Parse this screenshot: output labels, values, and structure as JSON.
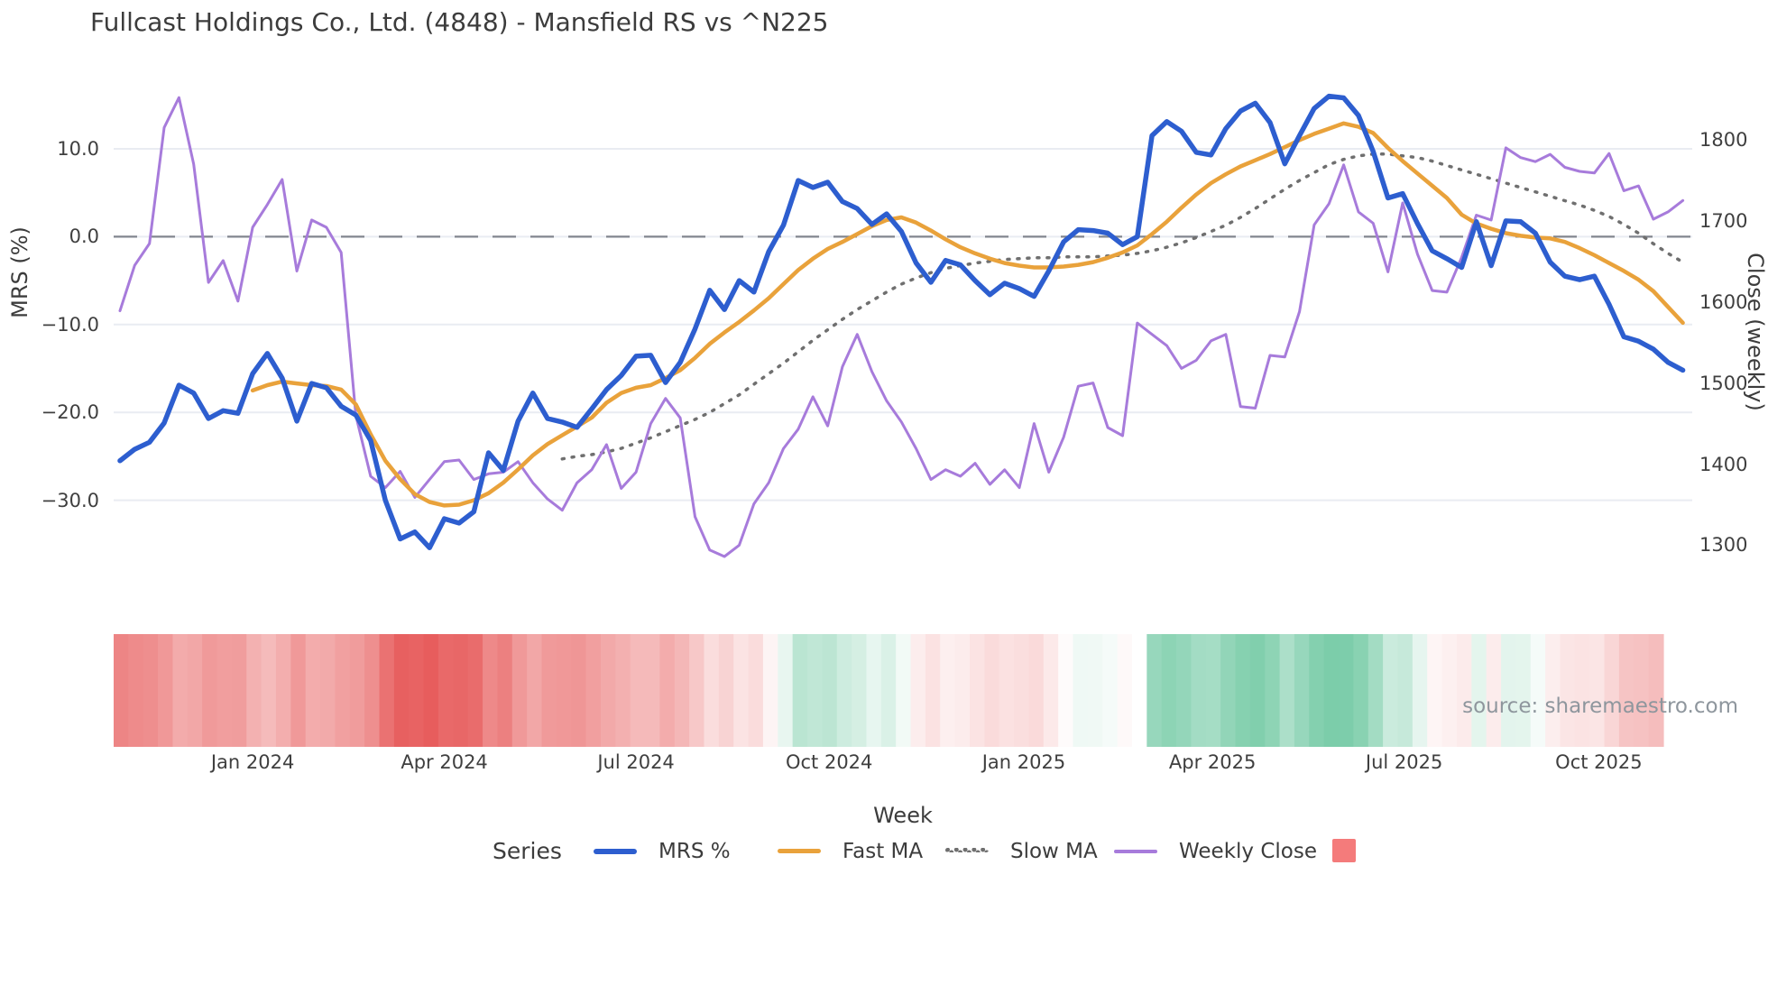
{
  "title": "Fullcast Holdings Co., Ltd. (4848) - Mansfield RS vs ^N225",
  "source_note": "source: sharemaestro.com",
  "legend": {
    "title": "Series",
    "swatch_color": "#f47b7b"
  },
  "chart_data": {
    "type": "line",
    "x_axis": {
      "label": "Week",
      "start_date": "2023-10-30",
      "interval_days": 7,
      "ticks": [
        {
          "pos": 9.0,
          "label": "Jan 2024"
        },
        {
          "pos": 22.0,
          "label": "Apr 2024"
        },
        {
          "pos": 35.0,
          "label": "Jul 2024"
        },
        {
          "pos": 48.1,
          "label": "Oct 2024"
        },
        {
          "pos": 61.3,
          "label": "Jan 2025"
        },
        {
          "pos": 74.1,
          "label": "Apr 2025"
        },
        {
          "pos": 87.1,
          "label": "Jul 2025"
        },
        {
          "pos": 100.3,
          "label": "Oct 2025"
        }
      ]
    },
    "y_left": {
      "label": "MRS (%)",
      "ticks": [
        {
          "v": 10,
          "label": "10.0"
        },
        {
          "v": 0,
          "label": "0.0"
        },
        {
          "v": -10,
          "label": "−10.0"
        },
        {
          "v": -20,
          "label": "−20.0"
        },
        {
          "v": -30,
          "label": "−30.0"
        }
      ],
      "zero_dashed_line": true
    },
    "y_right": {
      "label": "Close (weekly)",
      "ticks": [
        {
          "v": 1800,
          "label": "1800"
        },
        {
          "v": 1700,
          "label": "1700"
        },
        {
          "v": 1600,
          "label": "1600"
        },
        {
          "v": 1500,
          "label": "1500"
        },
        {
          "v": 1400,
          "label": "1400"
        },
        {
          "v": 1300,
          "label": "1300"
        }
      ]
    },
    "series": [
      {
        "name": "MRS %",
        "axis": "left",
        "color": "#2d5ecf",
        "width": 5.5,
        "style": "solid",
        "values": [
          -25.5,
          -24.2,
          -23.4,
          -21.2,
          -16.9,
          -17.8,
          -20.7,
          -19.8,
          -20.1,
          -15.6,
          -13.3,
          -16.1,
          -21.0,
          -16.7,
          -17.2,
          -19.3,
          -20.3,
          -23.2,
          -30.0,
          -34.4,
          -33.6,
          -35.4,
          -32.1,
          -32.6,
          -31.3,
          -24.6,
          -26.6,
          -21.0,
          -17.8,
          -20.7,
          -21.1,
          -21.7,
          -19.6,
          -17.4,
          -15.8,
          -13.6,
          -13.5,
          -16.6,
          -14.3,
          -10.5,
          -6.1,
          -8.3,
          -5.0,
          -6.3,
          -1.7,
          1.3,
          6.4,
          5.6,
          6.2,
          4.0,
          3.2,
          1.4,
          2.6,
          0.6,
          -3.0,
          -5.2,
          -2.7,
          -3.2,
          -5.0,
          -6.6,
          -5.3,
          -5.9,
          -6.8,
          -3.9,
          -0.6,
          0.8,
          0.7,
          0.4,
          -0.9,
          0.0,
          11.5,
          13.1,
          12.0,
          9.6,
          9.3,
          12.3,
          14.3,
          15.2,
          13.0,
          8.3,
          11.5,
          14.6,
          16.0,
          15.8,
          13.8,
          9.7,
          4.4,
          4.9,
          1.5,
          -1.6,
          -2.5,
          -3.5,
          1.7,
          -3.3,
          1.8,
          1.7,
          0.4,
          -2.9,
          -4.5,
          -4.9,
          -4.5,
          -7.7,
          -11.4,
          -11.9,
          -12.8,
          -14.3,
          -15.2
        ]
      },
      {
        "name": "Fast MA",
        "axis": "left",
        "color": "#e9a23b",
        "width": 4.5,
        "style": "solid",
        "values": [
          null,
          null,
          null,
          null,
          null,
          null,
          null,
          null,
          null,
          -17.5,
          -16.9,
          -16.5,
          -16.7,
          -16.9,
          -17.0,
          -17.4,
          -19.1,
          -22.5,
          -25.5,
          -27.6,
          -29.3,
          -30.2,
          -30.6,
          -30.5,
          -30.0,
          -29.2,
          -28.0,
          -26.5,
          -24.9,
          -23.6,
          -22.6,
          -21.6,
          -20.6,
          -18.9,
          -17.8,
          -17.2,
          -16.9,
          -16.1,
          -15.2,
          -13.8,
          -12.2,
          -10.9,
          -9.7,
          -8.4,
          -7.0,
          -5.4,
          -3.8,
          -2.5,
          -1.4,
          -0.6,
          0.3,
          1.2,
          1.9,
          2.2,
          1.6,
          0.7,
          -0.3,
          -1.2,
          -1.9,
          -2.5,
          -3.0,
          -3.3,
          -3.5,
          -3.5,
          -3.4,
          -3.2,
          -2.9,
          -2.4,
          -1.8,
          -1.0,
          0.3,
          1.7,
          3.3,
          4.8,
          6.1,
          7.1,
          8.0,
          8.7,
          9.4,
          10.2,
          11.0,
          11.7,
          12.3,
          12.9,
          12.5,
          11.8,
          10.1,
          8.6,
          7.2,
          5.8,
          4.4,
          2.5,
          1.5,
          0.9,
          0.4,
          0.1,
          -0.1,
          -0.2,
          -0.6,
          -1.3,
          -2.1,
          -3.0,
          -3.9,
          -4.9,
          -6.2,
          -8.0,
          -9.8
        ]
      },
      {
        "name": "Slow MA",
        "axis": "left",
        "color": "#6f6f6f",
        "width": 3.5,
        "style": "dotted",
        "values": [
          null,
          null,
          null,
          null,
          null,
          null,
          null,
          null,
          null,
          null,
          null,
          null,
          null,
          null,
          null,
          null,
          null,
          null,
          null,
          null,
          null,
          null,
          null,
          null,
          null,
          null,
          null,
          null,
          null,
          null,
          -25.3,
          -25.0,
          -24.8,
          -24.5,
          -24.1,
          -23.5,
          -22.9,
          -22.2,
          -21.5,
          -20.8,
          -20.0,
          -19.0,
          -18.0,
          -16.8,
          -15.6,
          -14.4,
          -13.1,
          -11.8,
          -10.6,
          -9.4,
          -8.3,
          -7.3,
          -6.3,
          -5.4,
          -4.7,
          -4.1,
          -3.6,
          -3.3,
          -3.0,
          -2.8,
          -2.6,
          -2.5,
          -2.4,
          -2.4,
          -2.3,
          -2.3,
          -2.3,
          -2.2,
          -2.1,
          -1.9,
          -1.6,
          -1.2,
          -0.7,
          -0.1,
          0.6,
          1.3,
          2.2,
          3.2,
          4.3,
          5.4,
          6.4,
          7.3,
          8.2,
          8.8,
          9.2,
          9.4,
          9.4,
          9.2,
          9.0,
          8.6,
          8.1,
          7.6,
          7.1,
          6.6,
          6.1,
          5.6,
          5.1,
          4.6,
          4.1,
          3.6,
          3.0,
          2.3,
          1.4,
          0.4,
          -0.8,
          -1.9,
          -2.9
        ]
      },
      {
        "name": "Weekly Close",
        "axis": "right",
        "color": "#a77bdb",
        "width": 3,
        "style": "solid",
        "values": [
          1589,
          1645,
          1672,
          1815,
          1852,
          1770,
          1624,
          1651,
          1601,
          1692,
          1720,
          1751,
          1638,
          1701,
          1692,
          1661,
          1460,
          1385,
          1371,
          1391,
          1359,
          1381,
          1403,
          1405,
          1381,
          1388,
          1390,
          1403,
          1377,
          1357,
          1343,
          1377,
          1393,
          1424,
          1370,
          1390,
          1450,
          1481,
          1457,
          1335,
          1294,
          1286,
          1300,
          1351,
          1377,
          1419,
          1443,
          1483,
          1447,
          1520,
          1560,
          1514,
          1478,
          1452,
          1419,
          1381,
          1393,
          1385,
          1401,
          1375,
          1393,
          1371,
          1450,
          1390,
          1433,
          1496,
          1500,
          1445,
          1435,
          1574,
          1560,
          1546,
          1518,
          1528,
          1552,
          1560,
          1471,
          1469,
          1534,
          1532,
          1588,
          1695,
          1721,
          1769,
          1711,
          1697,
          1637,
          1722,
          1659,
          1614,
          1612,
          1655,
          1707,
          1701,
          1790,
          1778,
          1773,
          1782,
          1766,
          1761,
          1759,
          1783,
          1737,
          1743,
          1702,
          1711,
          1725
        ]
      }
    ],
    "heatmap_strip": {
      "derived_from_series": "MRS %",
      "negative_full_color": "#e75d5d",
      "positive_full_color": "#7ccdaa",
      "zero_color": "#ffffff"
    },
    "layout": {
      "grid": true,
      "legend_position": "bottom",
      "y_left_range": [
        -37,
        17
      ],
      "y_right_range": [
        1280,
        1870
      ]
    }
  }
}
